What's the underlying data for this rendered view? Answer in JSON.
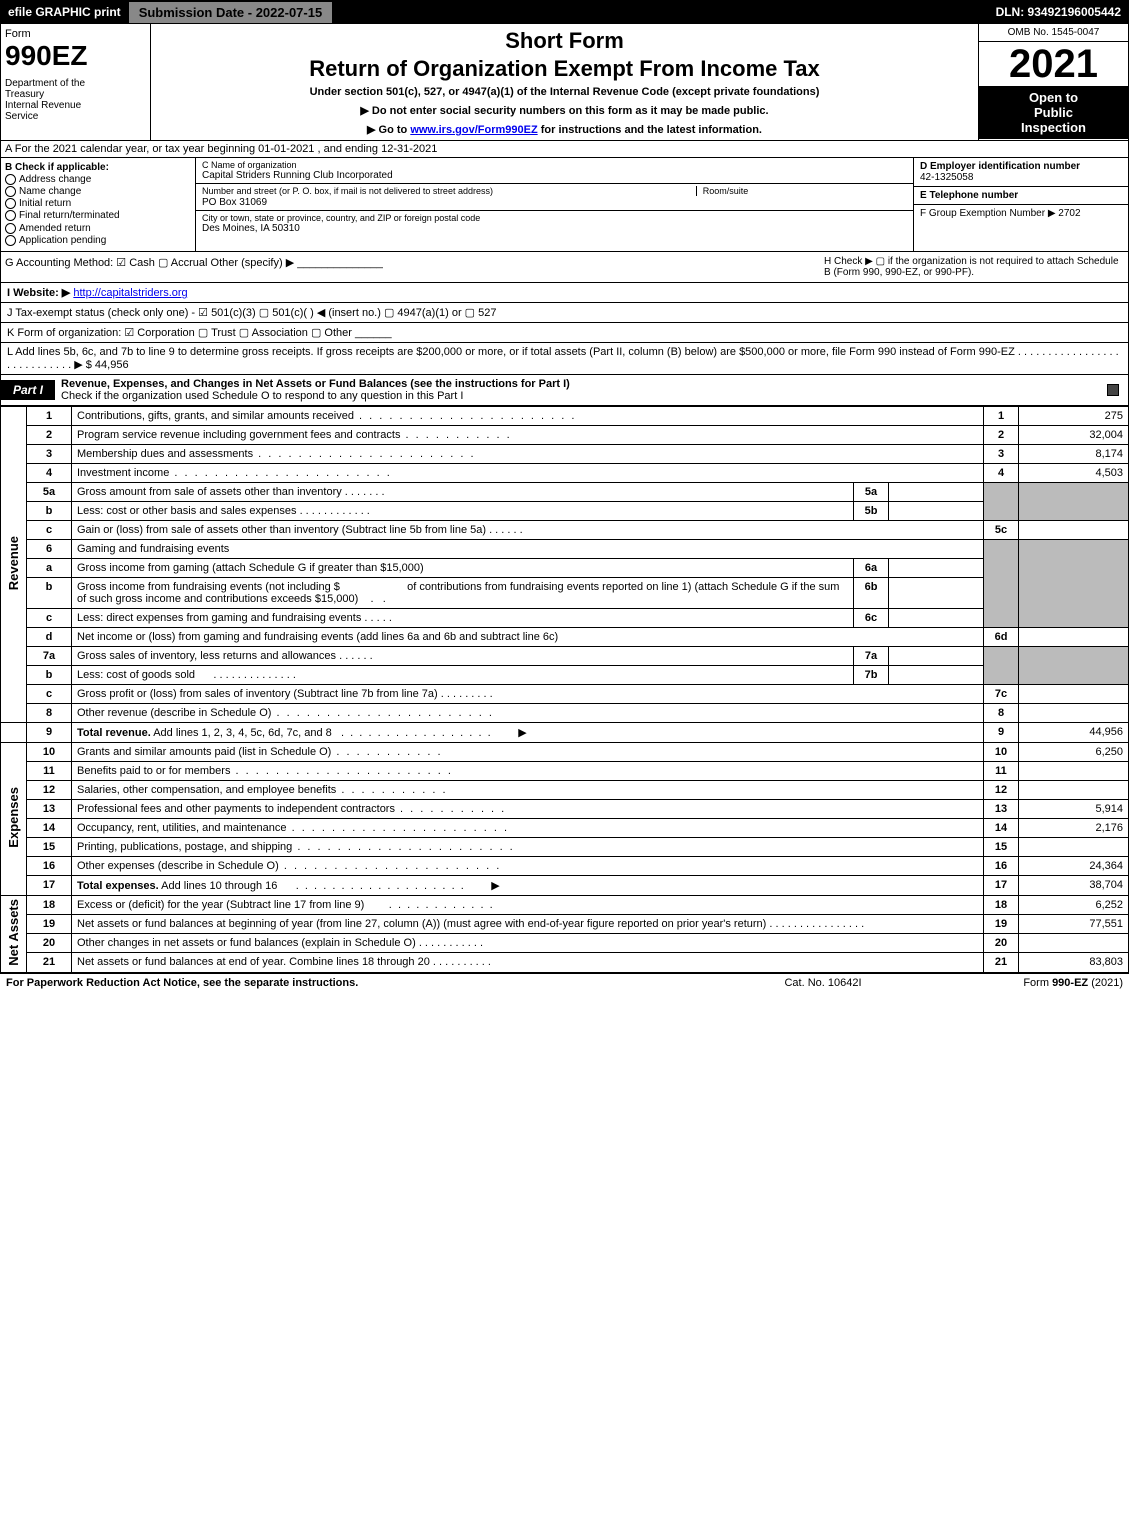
{
  "topbar": {
    "efile": "efile GRAPHIC print",
    "submission": "Submission Date - 2022-07-15",
    "dln": "DLN: 93492196005442"
  },
  "header": {
    "form_label": "Form",
    "form_number": "990EZ",
    "dept": "Department of the Treasury\nInternal Revenue Service",
    "short_form": "Short Form",
    "return_title": "Return of Organization Exempt From Income Tax",
    "under_section": "Under section 501(c), 527, or 4947(a)(1) of the Internal Revenue Code (except private foundations)",
    "no_ssn": "▶ Do not enter social security numbers on this form as it may be made public.",
    "goto": "▶ Go to www.irs.gov/Form990EZ for instructions and the latest information.",
    "goto_link": "www.irs.gov/Form990EZ",
    "omb": "OMB No. 1545-0047",
    "year": "2021",
    "inspection": "Open to Public Inspection"
  },
  "section_a": "A  For the 2021 calendar year, or tax year beginning 01-01-2021 , and ending 12-31-2021",
  "section_b": {
    "label": "B  Check if applicable:",
    "items": [
      "Address change",
      "Name change",
      "Initial return",
      "Final return/terminated",
      "Amended return",
      "Application pending"
    ]
  },
  "section_c": {
    "name_label": "C Name of organization",
    "name": "Capital Striders Running Club Incorporated",
    "street_label": "Number and street (or P. O. box, if mail is not delivered to street address)",
    "room_label": "Room/suite",
    "street": "PO Box 31069",
    "city_label": "City or town, state or province, country, and ZIP or foreign postal code",
    "city": "Des Moines, IA  50310"
  },
  "section_d": {
    "ein_label": "D Employer identification number",
    "ein": "42-1325058",
    "phone_label": "E Telephone number",
    "group_label": "F Group Exemption Number  ▶ 2702"
  },
  "row_g": {
    "left": "G Accounting Method:  ☑ Cash  ▢ Accrual  Other (specify) ▶ ______________",
    "h_label": "H  Check ▶  ▢  if the organization is not required to attach Schedule B (Form 990, 990-EZ, or 990-PF)."
  },
  "row_i": {
    "label": "I Website: ▶",
    "url": "http://capitalstriders.org"
  },
  "row_j": "J Tax-exempt status (check only one) - ☑ 501(c)(3) ▢ 501(c)(  ) ◀ (insert no.) ▢ 4947(a)(1) or ▢ 527",
  "row_k": "K Form of organization:  ☑ Corporation  ▢ Trust  ▢ Association  ▢ Other  ______",
  "row_l": "L Add lines 5b, 6c, and 7b to line 9 to determine gross receipts. If gross receipts are $200,000 or more, or if total assets (Part II, column (B) below) are $500,000 or more, file Form 990 instead of Form 990-EZ  .  .  .  .  .  .  .  .  .  .  .  .  .  .  .  .  .  .  .  .  .  .  .  .  .  .  .  .  ▶ $ 44,956",
  "part1": {
    "label": "Part I",
    "title": "Revenue, Expenses, and Changes in Net Assets or Fund Balances (see the instructions for Part I)",
    "check_text": "Check if the organization used Schedule O to respond to any question in this Part I"
  },
  "lines": {
    "revenue_label": "Revenue",
    "expenses_label": "Expenses",
    "netassets_label": "Net Assets",
    "1": {
      "desc": "Contributions, gifts, grants, and similar amounts received",
      "num": "1",
      "amount": "275"
    },
    "2": {
      "desc": "Program service revenue including government fees and contracts",
      "num": "2",
      "amount": "32,004"
    },
    "3": {
      "desc": "Membership dues and assessments",
      "num": "3",
      "amount": "8,174"
    },
    "4": {
      "desc": "Investment income",
      "num": "4",
      "amount": "4,503"
    },
    "5a": {
      "desc": "Gross amount from sale of assets other than inventory",
      "sub": "5a"
    },
    "5b": {
      "desc": "Less: cost or other basis and sales expenses",
      "sub": "5b"
    },
    "5c": {
      "desc": "Gain or (loss) from sale of assets other than inventory (Subtract line 5b from line 5a)",
      "num": "5c"
    },
    "6": {
      "desc": "Gaming and fundraising events"
    },
    "6a": {
      "desc": "Gross income from gaming (attach Schedule G if greater than $15,000)",
      "sub": "6a"
    },
    "6b": {
      "desc": "Gross income from fundraising events (not including $                        of contributions from fundraising events reported on line 1) (attach Schedule G if the sum of such gross income and contributions exceeds $15,000)",
      "sub": "6b"
    },
    "6c": {
      "desc": "Less: direct expenses from gaming and fundraising events",
      "sub": "6c"
    },
    "6d": {
      "desc": "Net income or (loss) from gaming and fundraising events (add lines 6a and 6b and subtract line 6c)",
      "num": "6d"
    },
    "7a": {
      "desc": "Gross sales of inventory, less returns and allowances",
      "sub": "7a"
    },
    "7b": {
      "desc": "Less: cost of goods sold",
      "sub": "7b"
    },
    "7c": {
      "desc": "Gross profit or (loss) from sales of inventory (Subtract line 7b from line 7a)",
      "num": "7c"
    },
    "8": {
      "desc": "Other revenue (describe in Schedule O)",
      "num": "8"
    },
    "9": {
      "desc": "Total revenue. Add lines 1, 2, 3, 4, 5c, 6d, 7c, and 8",
      "num": "9",
      "amount": "44,956"
    },
    "10": {
      "desc": "Grants and similar amounts paid (list in Schedule O)",
      "num": "10",
      "amount": "6,250"
    },
    "11": {
      "desc": "Benefits paid to or for members",
      "num": "11"
    },
    "12": {
      "desc": "Salaries, other compensation, and employee benefits",
      "num": "12"
    },
    "13": {
      "desc": "Professional fees and other payments to independent contractors",
      "num": "13",
      "amount": "5,914"
    },
    "14": {
      "desc": "Occupancy, rent, utilities, and maintenance",
      "num": "14",
      "amount": "2,176"
    },
    "15": {
      "desc": "Printing, publications, postage, and shipping",
      "num": "15"
    },
    "16": {
      "desc": "Other expenses (describe in Schedule O)",
      "num": "16",
      "amount": "24,364"
    },
    "17": {
      "desc": "Total expenses. Add lines 10 through 16",
      "num": "17",
      "amount": "38,704"
    },
    "18": {
      "desc": "Excess or (deficit) for the year (Subtract line 17 from line 9)",
      "num": "18",
      "amount": "6,252"
    },
    "19": {
      "desc": "Net assets or fund balances at beginning of year (from line 27, column (A)) (must agree with end-of-year figure reported on prior year's return)",
      "num": "19",
      "amount": "77,551"
    },
    "20": {
      "desc": "Other changes in net assets or fund balances (explain in Schedule O)",
      "num": "20"
    },
    "21": {
      "desc": "Net assets or fund balances at end of year. Combine lines 18 through 20",
      "num": "21",
      "amount": "83,803"
    }
  },
  "footer": {
    "left": "For Paperwork Reduction Act Notice, see the separate instructions.",
    "mid": "Cat. No. 10642I",
    "right": "Form 990-EZ (2021)"
  }
}
